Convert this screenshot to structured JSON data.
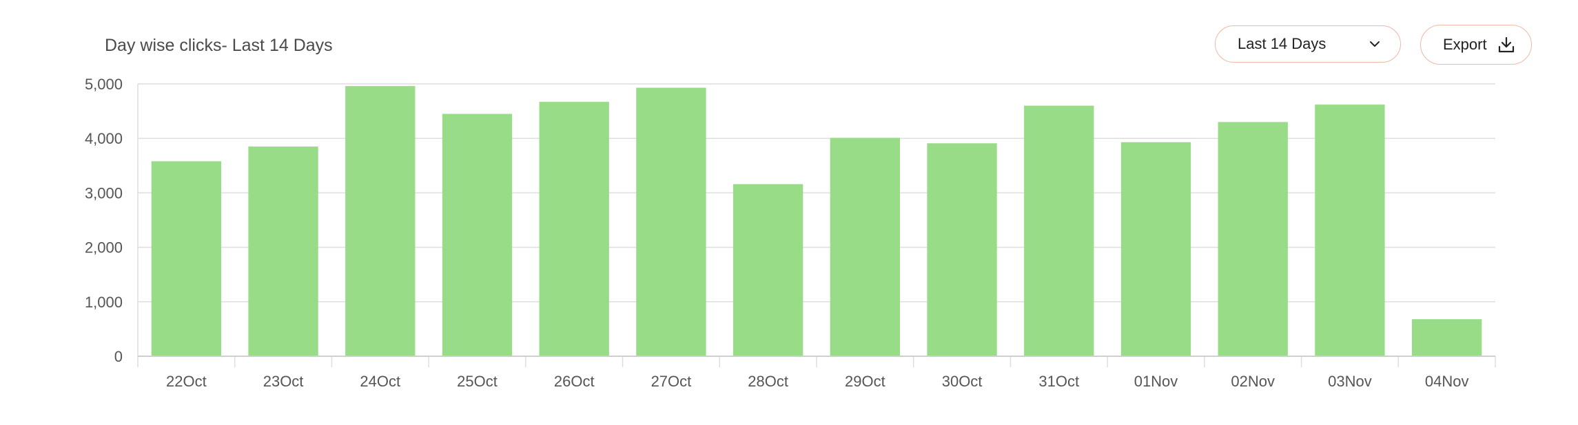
{
  "header": {
    "title": "Day wise clicks- Last 14 Days",
    "range_select": {
      "selected": "Last 14 Days",
      "icon": "chevron-down-icon"
    },
    "export_button": {
      "label": "Export",
      "icon": "download-icon"
    }
  },
  "colors": {
    "bar": "#98dc88",
    "grid": "#dedede",
    "axis_text": "#555555",
    "button_border": "#f0b8a8"
  },
  "chart_data": {
    "type": "bar",
    "title": "Day wise clicks- Last 14 Days",
    "xlabel": "",
    "ylabel": "",
    "categories": [
      "22Oct",
      "23Oct",
      "24Oct",
      "25Oct",
      "26Oct",
      "27Oct",
      "28Oct",
      "29Oct",
      "30Oct",
      "31Oct",
      "01Nov",
      "02Nov",
      "03Nov",
      "04Nov"
    ],
    "values": [
      3580,
      3850,
      4960,
      4450,
      4670,
      4930,
      3160,
      4010,
      3910,
      4600,
      3930,
      4300,
      4620,
      680
    ],
    "ylim": [
      0,
      5000
    ],
    "yticks": [
      0,
      1000,
      2000,
      3000,
      4000,
      5000
    ],
    "ytick_labels": [
      "0",
      "1,000",
      "2,000",
      "3,000",
      "4,000",
      "5,000"
    ],
    "grid": true,
    "legend": "none"
  }
}
